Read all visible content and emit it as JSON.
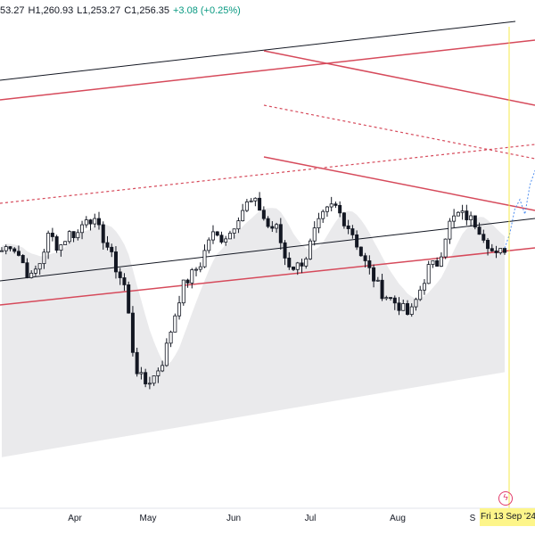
{
  "header": {
    "open_partial": "53.27",
    "high": "H1,260.93",
    "low": "L1,253.27",
    "close": "C1,256.35",
    "change": "+3.08 (+0.25%)"
  },
  "crosshair_date": "Fri 13 Sep '24",
  "colors": {
    "candle": "#131722",
    "trend_red": "#d64a5b",
    "channel_black": "#131722",
    "fill": "#e8e8ea",
    "crosshair": "#f5e84a",
    "projection": "#4f8ff0"
  },
  "icons": [
    "flash-icon"
  ],
  "chart_data": {
    "type": "candlestick",
    "y_range": [
      1160,
      1300
    ],
    "x_range": [
      "Mar",
      "Sep 13"
    ],
    "x_ticks": [
      "Apr",
      "May",
      "Jun",
      "Jul",
      "Aug",
      "S"
    ],
    "y_ticks_visible": false,
    "grid": false,
    "close_path": [
      1255,
      1258,
      1252,
      1243,
      1250,
      1262,
      1256,
      1262,
      1262,
      1270,
      1265,
      1258,
      1248,
      1240,
      1208,
      1200,
      1203,
      1210,
      1225,
      1240,
      1245,
      1250,
      1262,
      1260,
      1262,
      1270,
      1275,
      1274,
      1265,
      1264,
      1250,
      1248,
      1252,
      1263,
      1270,
      1274,
      1268,
      1262,
      1252,
      1245,
      1238,
      1235,
      1232,
      1228,
      1238,
      1248,
      1250,
      1265,
      1270,
      1269,
      1266,
      1260,
      1252,
      1256
    ],
    "projection_path": [
      1256,
      1262,
      1272,
      1276,
      1270,
      1282,
      1288
    ]
  }
}
